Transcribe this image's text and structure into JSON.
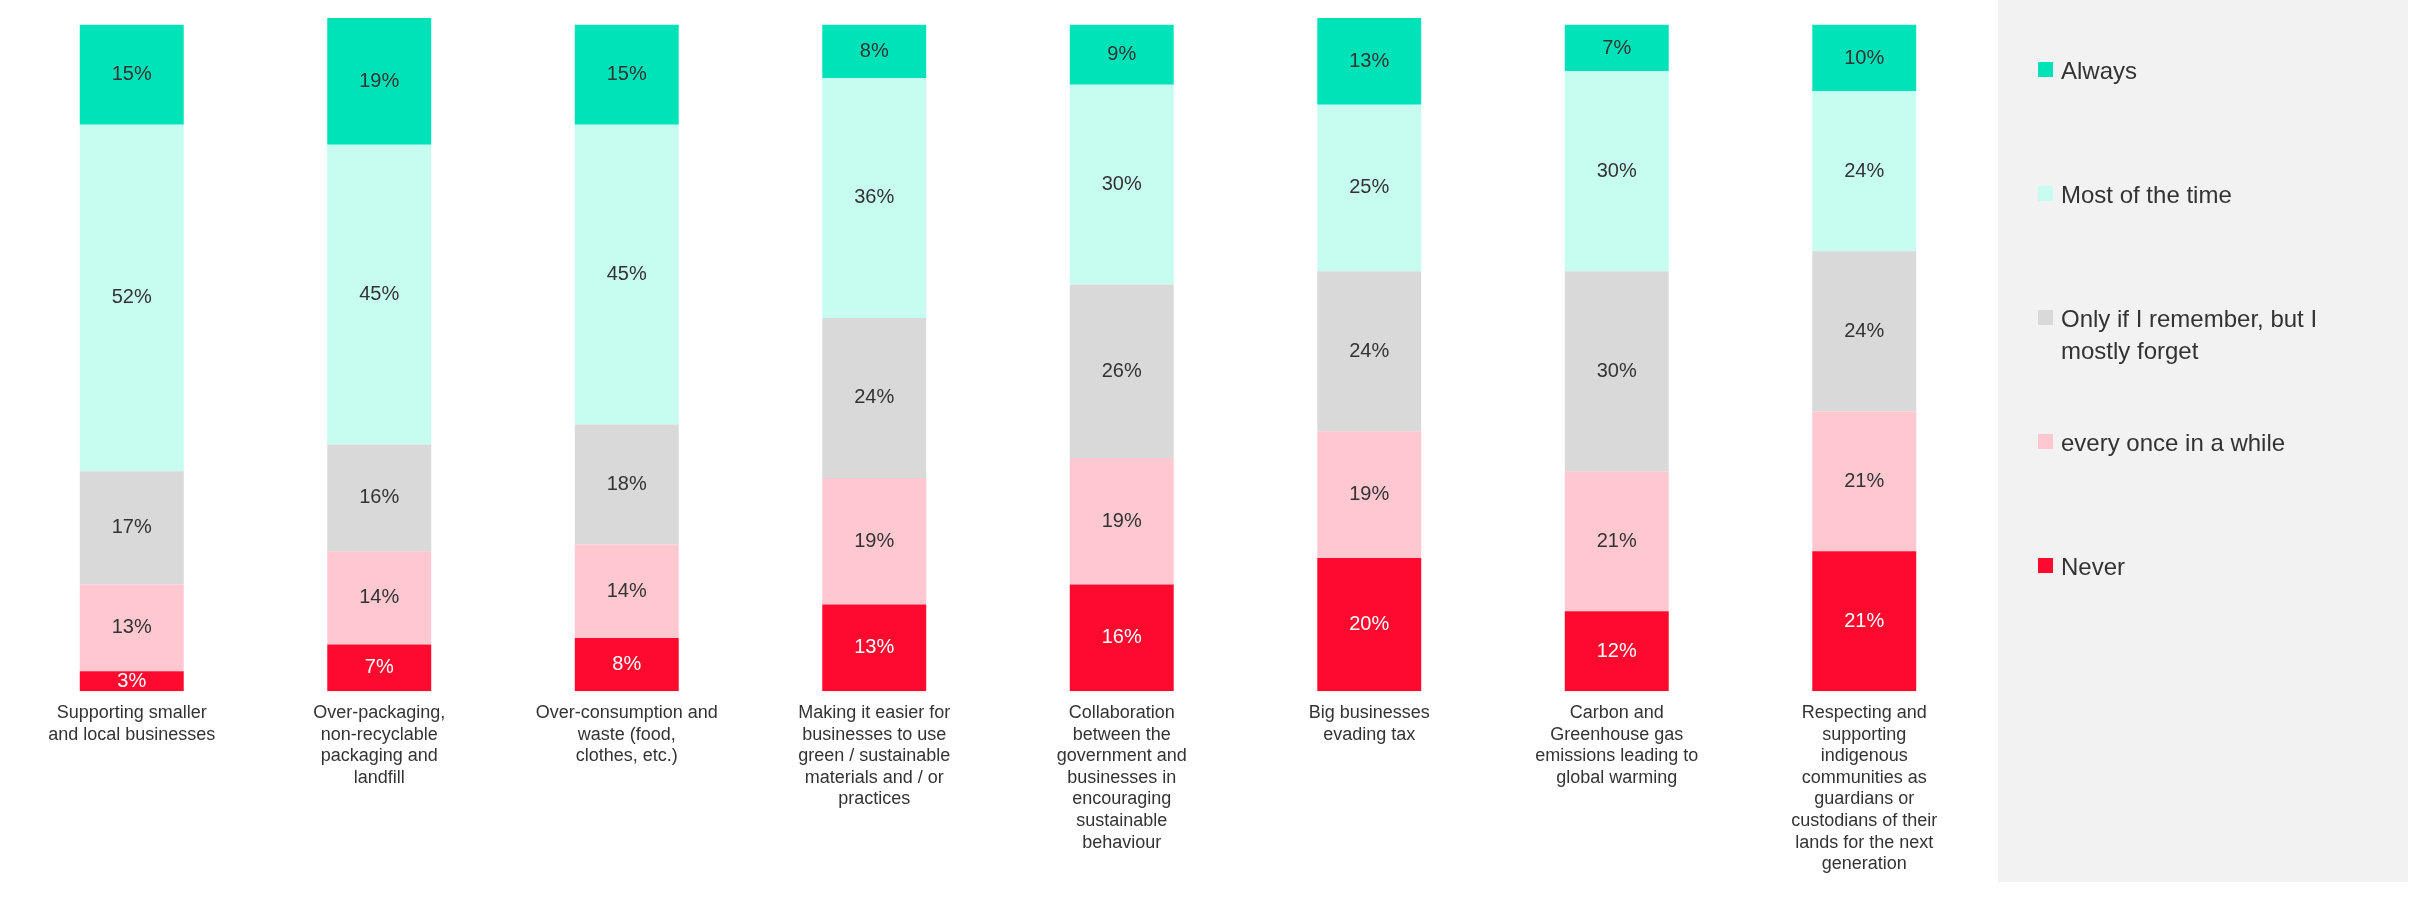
{
  "chart_data": {
    "type": "bar",
    "stacked": true,
    "legend": "right",
    "grid": false,
    "categories": [
      "Supporting smaller and local businesses",
      "Over-packaging, non-recyclable packaging and landfill",
      "Over-consumption and waste (food, clothes, etc.)",
      "Making it easier for businesses to use green / sustainable materials and / or practices",
      "Collaboration between the government and businesses in encouraging sustainable behaviour",
      "Big businesses evading tax",
      "Carbon and Greenhouse gas emissions leading to global warming",
      "Respecting and supporting indigenous communities as guardians or custodians of their lands for the next generation"
    ],
    "series": [
      {
        "name": "Never",
        "color": "#ff0a2f",
        "values": [
          3,
          7,
          8,
          13,
          16,
          20,
          12,
          21
        ],
        "value_labels": [
          "3%",
          "7%",
          "8%",
          "13%",
          "16%",
          "20%",
          "12%",
          "21%"
        ]
      },
      {
        "name": "every once in a while",
        "color": "#ffc8d1",
        "values": [
          13,
          14,
          14,
          19,
          19,
          19,
          21,
          21
        ],
        "value_labels": [
          "13%",
          "14%",
          "14%",
          "19%",
          "19%",
          "19%",
          "21%",
          "21%"
        ]
      },
      {
        "name": "Only if I remember, but I mostly forget",
        "color": "#d9d9d9",
        "values": [
          17,
          16,
          18,
          24,
          26,
          24,
          30,
          24
        ],
        "value_labels": [
          "17%",
          "16%",
          "18%",
          "24%",
          "26%",
          "24%",
          "30%",
          "24%"
        ]
      },
      {
        "name": "Most of the time",
        "color": "#c6fdf0",
        "values": [
          52,
          45,
          45,
          36,
          30,
          25,
          30,
          24
        ],
        "value_labels": [
          "52%",
          "45%",
          "45%",
          "36%",
          "30%",
          "25%",
          "30%",
          "24%"
        ]
      },
      {
        "name": "Always",
        "color": "#00e3b9",
        "values": [
          15,
          19,
          15,
          8,
          9,
          13,
          7,
          10
        ],
        "value_labels": [
          "15%",
          "19%",
          "15%",
          "8%",
          "9%",
          "13%",
          "7%",
          "10%"
        ]
      }
    ]
  }
}
